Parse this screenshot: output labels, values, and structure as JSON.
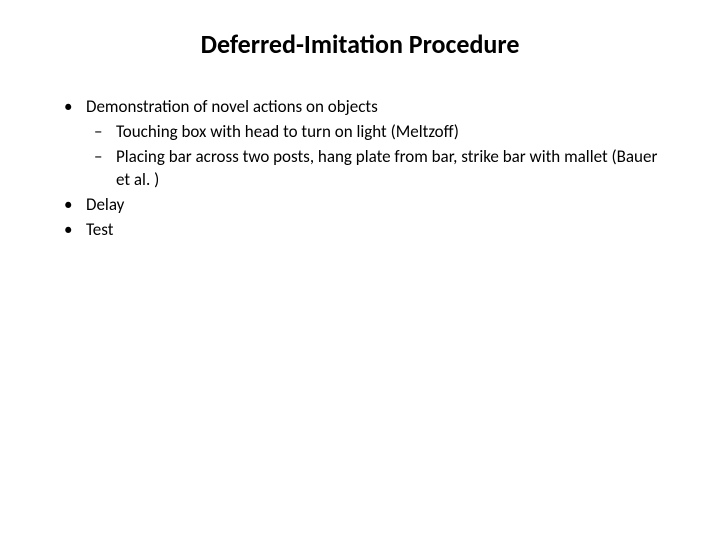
{
  "slide": {
    "title": "Deferred-Imitation Procedure",
    "title_fontsize": 26,
    "title_weight": 700,
    "body_fontsize": 17,
    "background_color": "#ffffff",
    "text_color": "#000000",
    "bullets": [
      {
        "text": "Demonstration of novel actions on objects",
        "children": [
          {
            "text": "Touching box with head to turn on light (Meltzoff)"
          },
          {
            "text": "Placing bar across two posts, hang plate from bar, strike bar with mallet (Bauer et al. )"
          }
        ]
      },
      {
        "text": "Delay"
      },
      {
        "text": "Test"
      }
    ]
  }
}
